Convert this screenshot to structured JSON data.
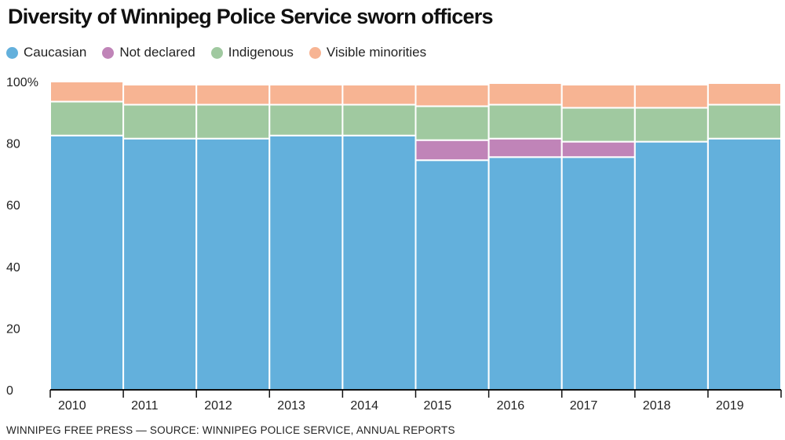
{
  "title": "Diversity of Winnipeg Police Service sworn officers",
  "source": "WINNIPEG FREE PRESS — SOURCE: WINNIPEG POLICE SERVICE, ANNUAL REPORTS",
  "legend": [
    {
      "name": "Caucasian",
      "color": "#63b0dc"
    },
    {
      "name": "Not declared",
      "color": "#c084b8"
    },
    {
      "name": "Indigenous",
      "color": "#a0c9a0"
    },
    {
      "name": "Visible minorities",
      "color": "#f7b493"
    }
  ],
  "chart_data": {
    "type": "bar",
    "stacked": true,
    "title": "Diversity of Winnipeg Police Service sworn officers",
    "xlabel": "",
    "ylabel": "",
    "ylim": [
      0,
      100
    ],
    "yticks": [
      "0",
      "20",
      "40",
      "60",
      "80",
      "100%"
    ],
    "ytick_values": [
      0,
      20,
      40,
      60,
      80,
      100
    ],
    "grid": false,
    "legend_position": "top-left",
    "categories": [
      "2010",
      "2011",
      "2012",
      "2013",
      "2014",
      "2015",
      "2016",
      "2017",
      "2018",
      "2019"
    ],
    "series": [
      {
        "name": "Caucasian",
        "color": "#63b0dc",
        "values": [
          82.5,
          81.5,
          81.5,
          82.5,
          82.5,
          74.5,
          75.5,
          75.5,
          80.5,
          81.5
        ]
      },
      {
        "name": "Not declared",
        "color": "#c084b8",
        "values": [
          0,
          0,
          0,
          0,
          0,
          6.5,
          6,
          5,
          0,
          0
        ]
      },
      {
        "name": "Indigenous",
        "color": "#a0c9a0",
        "values": [
          11,
          11,
          11,
          10,
          10,
          11,
          11,
          11,
          11,
          11
        ]
      },
      {
        "name": "Visible minorities",
        "color": "#f7b493",
        "values": [
          6.5,
          6.5,
          6.5,
          6.5,
          6.5,
          7,
          7,
          7.5,
          7.5,
          7
        ]
      }
    ]
  }
}
